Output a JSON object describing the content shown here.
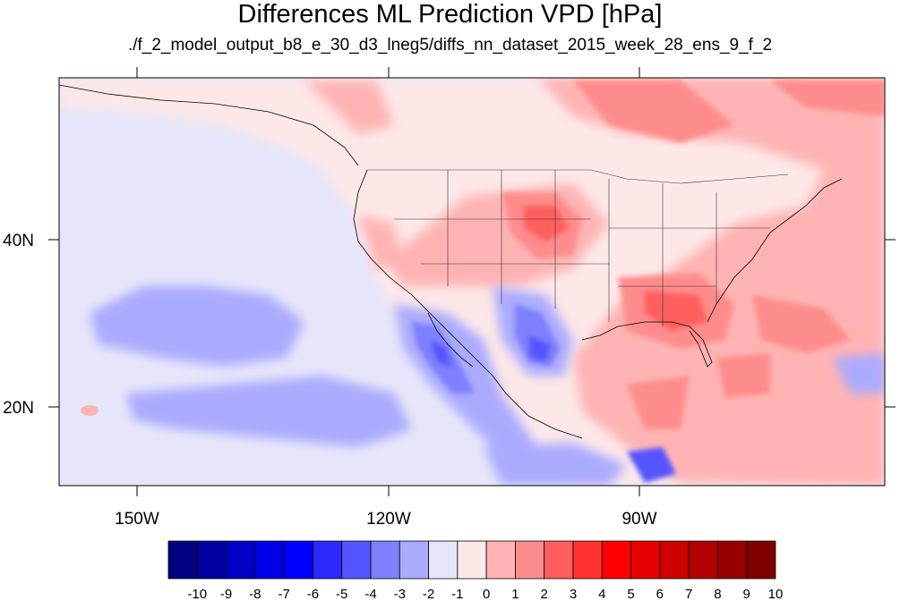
{
  "title": "Differences ML Prediction VPD [hPa]",
  "subtitle": "./f_2_model_output_b8_e_30_d3_lneg5/diffs_nn_dataset_2015_week_28_ens_9_f_2",
  "map": {
    "lat_labels": [
      "40N",
      "20N"
    ],
    "lon_labels": [
      "150W",
      "120W",
      "90W"
    ]
  },
  "colorbar": {
    "labels": [
      "-10",
      "-9",
      "-8",
      "-7",
      "-6",
      "-5",
      "-4",
      "-3",
      "-2",
      "-1",
      "0",
      "1",
      "2",
      "3",
      "4",
      "5",
      "6",
      "7",
      "8",
      "9",
      "10"
    ],
    "colors": [
      "#000080",
      "#0000a3",
      "#0000c6",
      "#0000e8",
      "#0000ff",
      "#2a2aff",
      "#5555ff",
      "#7f7fff",
      "#aaaaff",
      "#e6e6fa",
      "#fde8e8",
      "#ffb3b3",
      "#ff8c8c",
      "#ff5e5e",
      "#ff3232",
      "#ff0000",
      "#e60000",
      "#cc0000",
      "#b30000",
      "#990000",
      "#800000"
    ]
  }
}
